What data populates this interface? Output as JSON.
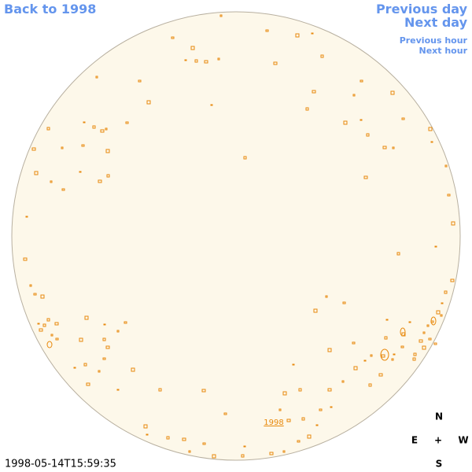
{
  "nav": {
    "back": "Back to 1998",
    "previous_day": "Previous day",
    "next_day": "Next day",
    "previous_hour": "Previous hour",
    "next_hour": "Next hour"
  },
  "disk_label": "1998",
  "timestamp": "1998-05-14T15:59:35",
  "compass": {
    "north": "N",
    "east": "E",
    "center": "+",
    "west": "W",
    "south": "S"
  }
}
